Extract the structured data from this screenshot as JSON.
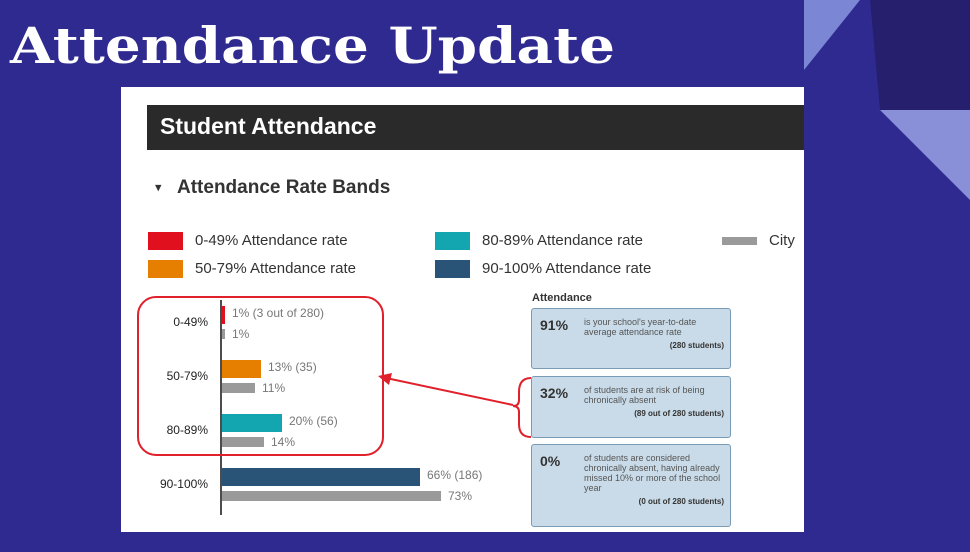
{
  "slide_title": "Attendance Update",
  "section_header": "Student Attendance",
  "chart_data": {
    "type": "bar",
    "orientation": "horizontal",
    "title": "Attendance Rate Bands",
    "categories": [
      "0-49%",
      "50-79%",
      "80-89%",
      "90-100%"
    ],
    "series": [
      {
        "legend_labels": [
          "0-49% Attendance rate",
          "50-79% Attendance rate",
          "80-89% Attendance rate",
          "90-100% Attendance rate"
        ],
        "colors": [
          "#e0101e",
          "#e67e00",
          "#13a5b0",
          "#2a5378"
        ],
        "values": [
          1,
          13,
          20,
          66
        ],
        "value_labels": [
          "1% (3 out of 280)",
          "13% (35)",
          "20% (56)",
          "66% (186)"
        ]
      },
      {
        "name": "City",
        "color": "#9a9a9a",
        "values": [
          1,
          11,
          14,
          73
        ],
        "value_labels": [
          "1%",
          "11%",
          "14%",
          "73%"
        ]
      }
    ]
  },
  "attendance_panel": {
    "title": "Attendance",
    "boxes": [
      {
        "figure": "91%",
        "text": "is your school's year-to-date average attendance rate",
        "note": "(280 students)"
      },
      {
        "figure": "32%",
        "text": "of students are at risk of being chronically absent",
        "note": "(89 out of 280 students)"
      },
      {
        "figure": "0%",
        "text": "of students are considered chronically absent, having already missed 10% or more of the school year",
        "note": "(0 out of 280 students)"
      }
    ]
  }
}
